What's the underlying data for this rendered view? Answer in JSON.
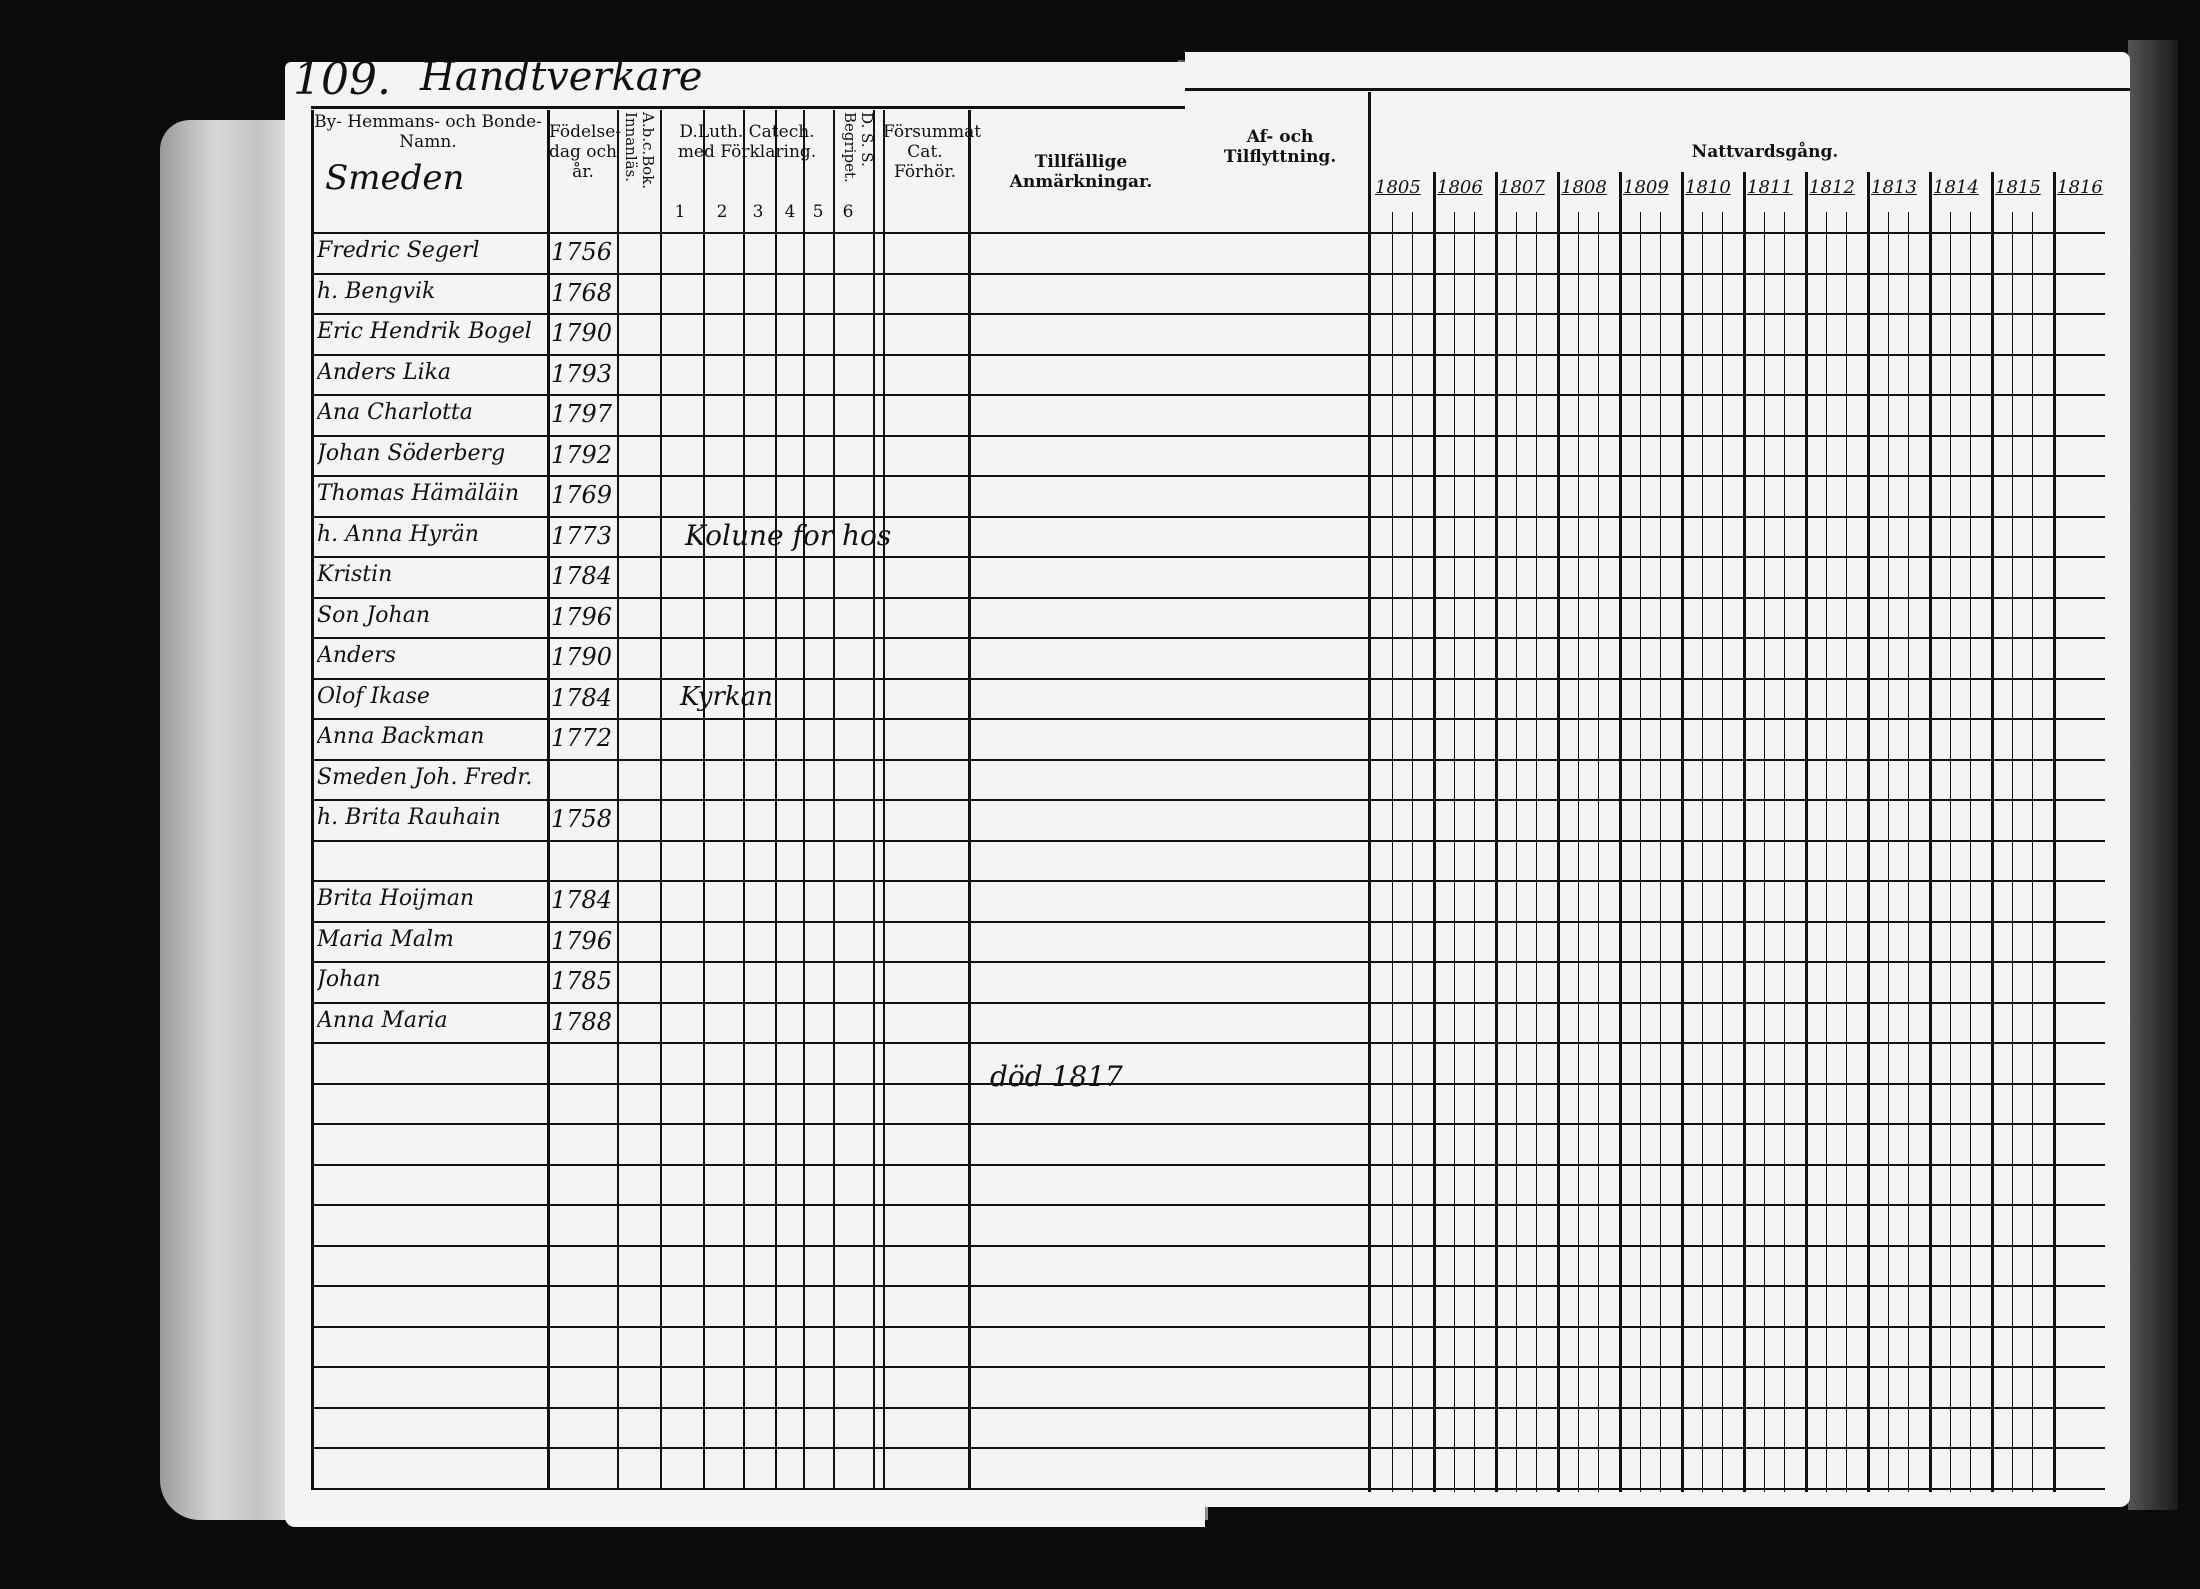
{
  "page_number": "109.",
  "page_heading": "Handtverkare",
  "left_headers": {
    "name": "By- Hemmans- och Bonde-Namn.",
    "place": "Smeden",
    "birth": "Födelse-dag och år.",
    "abc": "A.b.c.Bok. Innanläs.",
    "catechism": "D.Luth. Catech. med Förklaring.",
    "catechism_parts": [
      "1",
      "2",
      "3",
      "4",
      "5",
      "6"
    ],
    "ds": "D. S. S. Begripet.",
    "forsummat": "Försummat Cat. Förhör.",
    "remarks": "Tillfällige Anmärkningar."
  },
  "right_headers": {
    "moving": "Af- och Tilflyttning.",
    "communion": "Nattvardsgång.",
    "years": [
      "1805",
      "1806",
      "1807",
      "1808",
      "1809",
      "1810",
      "1811",
      "1812",
      "1813",
      "1814",
      "1815",
      "1816"
    ]
  },
  "rows": [
    {
      "name": "Fredric Segerl",
      "birth": "1756"
    },
    {
      "name": "h. Bengvik",
      "birth": "1768"
    },
    {
      "name": "Eric Hendrik Bogel",
      "birth": "1790"
    },
    {
      "name": "Anders Lika",
      "birth": "1793"
    },
    {
      "name": "Ana Charlotta",
      "birth": "1797"
    },
    {
      "name": "Johan Söderberg",
      "birth": "1792"
    },
    {
      "name": "Thomas Hämäläin",
      "birth": "1769"
    },
    {
      "name": "h. Anna Hyrän",
      "birth": "1773"
    },
    {
      "name": "Kristin",
      "birth": "1784"
    },
    {
      "name": "Son Johan",
      "birth": "1796"
    },
    {
      "name": "Anders",
      "birth": "1790"
    },
    {
      "name": "Olof Ikase",
      "birth": "1784"
    },
    {
      "name": "Anna Backman",
      "birth": "1772"
    },
    {
      "name": "Smeden Joh. Fredr.",
      "birth": ""
    },
    {
      "name": "h. Brita Rauhain",
      "birth": "1758"
    },
    {
      "name": "",
      "birth": ""
    },
    {
      "name": "Brita Hoijman",
      "birth": "1784"
    },
    {
      "name": "Maria Malm",
      "birth": "1796"
    },
    {
      "name": "Johan",
      "birth": "1785"
    },
    {
      "name": "Anna Maria",
      "birth": "1788"
    }
  ],
  "remarks_notes": [
    "Kolune for hos",
    "Kyrkan"
  ],
  "remarks_death": "död 1817"
}
